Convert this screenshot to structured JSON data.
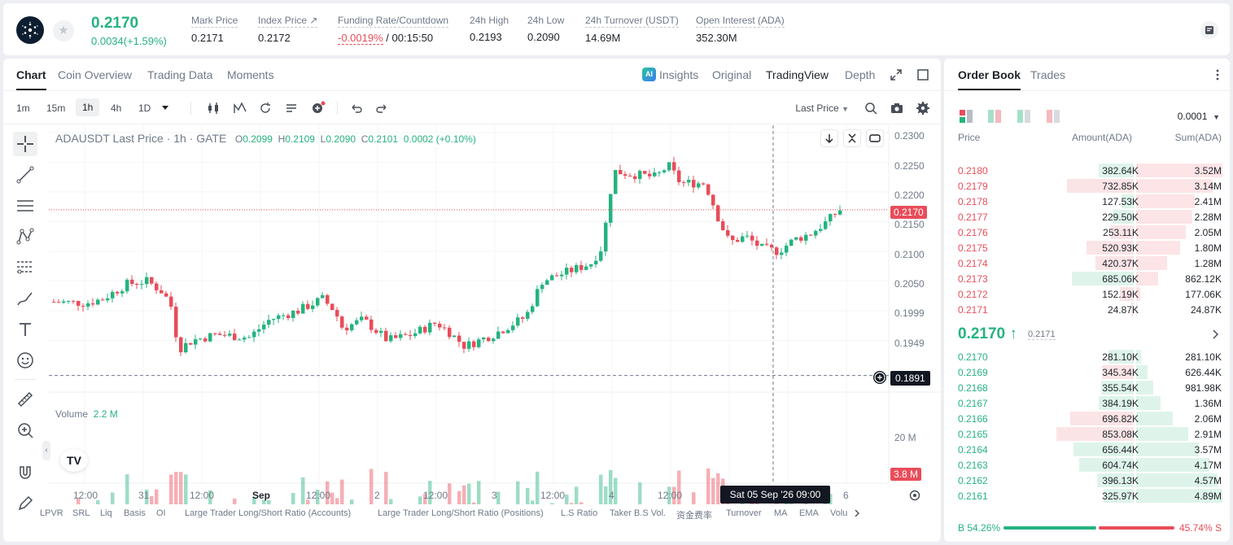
{
  "header": {
    "last_price": "0.2170",
    "change": "0.0034(+1.59%)",
    "stats": [
      {
        "label": "Mark Price",
        "value": "0.2171"
      },
      {
        "label": "Index Price ↗",
        "value": "0.2172"
      },
      {
        "label": "Funding Rate/Countdown",
        "value_rate": "-0.0019%",
        "value_cd": "/ 00:15:50"
      },
      {
        "label": "24h High",
        "value": "0.2193"
      },
      {
        "label": "24h Low",
        "value": "0.2090"
      },
      {
        "label": "24h Turnover (USDT)",
        "value": "14.69M"
      },
      {
        "label": "Open Interest (ADA)",
        "value": "352.30M"
      }
    ]
  },
  "tabs": [
    "Chart",
    "Coin Overview",
    "Trading Data",
    "Moments"
  ],
  "views": {
    "ai_badge": "AI",
    "insights": "Insights",
    "original": "Original",
    "tradingview": "TradingView",
    "depth": "Depth"
  },
  "timeframes": [
    "1m",
    "15m",
    "1h",
    "4h",
    "1D"
  ],
  "price_type": "Last Price",
  "legend": {
    "symbol": "ADAUSDT Last Price · 1h · GATE",
    "o": "0.2099",
    "h": "0.2109",
    "l": "0.2090",
    "c": "0.2101",
    "chg": "0.0002 (+0.10%)",
    "vol_label": "Volume",
    "vol_value": "2.2 M"
  },
  "tv_logo": "TV",
  "axis": {
    "price_ticks": [
      "0.2300",
      "0.2250",
      "0.2200",
      "0.2150",
      "0.2100",
      "0.2050",
      "0.1999",
      "0.1949"
    ],
    "last_tag": "0.2170",
    "cursor_tag": "0.1891",
    "vol_tick": "20 M",
    "vol_tag": "3.8 M"
  },
  "time_axis": [
    "12:00",
    "31",
    "12:00",
    "Sep",
    "12:00",
    "2",
    "12:00",
    "3",
    "12:00",
    "4",
    "12:00",
    "6"
  ],
  "crosshair_time": "Sat 05 Sep '26   09:00",
  "indicators": [
    "LPVR",
    "SRL",
    "Liq",
    "Basis",
    "OI",
    "Large Trader Long/Short Ratio (Accounts)",
    "Large Trader Long/Short Ratio (Positions)",
    "L.S Ratio",
    "Taker B.S Vol.",
    "资金费率",
    "Turnover",
    "MA",
    "EMA",
    "Volu"
  ],
  "chart_data": {
    "type": "candlestick",
    "y_range": [
      0.1891,
      0.23
    ],
    "last_price": 0.217,
    "cursor_price": 0.1891,
    "volume_unit": "M",
    "volume_tick": 20,
    "volume_last": 3.8
  },
  "orderbook": {
    "tabs": [
      "Order Book",
      "Trades"
    ],
    "precision": "0.0001",
    "cols": {
      "price": "Price",
      "amount": "Amount(ADA)",
      "sum": "Sum(ADA)"
    },
    "asks": [
      {
        "price": "0.2180",
        "amount": "382.64K",
        "sum": "3.52M",
        "a": 0.38,
        "s": 1.0
      },
      {
        "price": "0.2179",
        "amount": "732.85K",
        "sum": "3.14M",
        "a": 0.73,
        "s": 0.89
      },
      {
        "price": "0.2178",
        "amount": "127.53K",
        "sum": "2.41M",
        "a": 0.13,
        "s": 0.68
      },
      {
        "price": "0.2177",
        "amount": "229.50K",
        "sum": "2.28M",
        "a": 0.23,
        "s": 0.65
      },
      {
        "price": "0.2176",
        "amount": "253.11K",
        "sum": "2.05M",
        "a": 0.25,
        "s": 0.58
      },
      {
        "price": "0.2175",
        "amount": "520.93K",
        "sum": "1.80M",
        "a": 0.52,
        "s": 0.51
      },
      {
        "price": "0.2174",
        "amount": "420.37K",
        "sum": "1.28M",
        "a": 0.42,
        "s": 0.36
      },
      {
        "price": "0.2173",
        "amount": "685.06K",
        "sum": "862.12K",
        "a": 0.68,
        "s": 0.25
      },
      {
        "price": "0.2172",
        "amount": "152.19K",
        "sum": "177.06K",
        "a": 0.15,
        "s": 0.05
      },
      {
        "price": "0.2171",
        "amount": "24.87K",
        "sum": "24.87K",
        "a": 0.03,
        "s": 0.01
      }
    ],
    "mid_price": "0.2170 ↑",
    "mid_mark": "0.2171",
    "bids": [
      {
        "price": "0.2170",
        "amount": "281.10K",
        "sum": "281.10K",
        "a": 0.28,
        "s": 0.06
      },
      {
        "price": "0.2169",
        "amount": "345.34K",
        "sum": "626.44K",
        "a": 0.35,
        "s": 0.13
      },
      {
        "price": "0.2168",
        "amount": "355.54K",
        "sum": "981.98K",
        "a": 0.36,
        "s": 0.2
      },
      {
        "price": "0.2167",
        "amount": "384.19K",
        "sum": "1.36M",
        "a": 0.38,
        "s": 0.28
      },
      {
        "price": "0.2166",
        "amount": "696.82K",
        "sum": "2.06M",
        "a": 0.7,
        "s": 0.42
      },
      {
        "price": "0.2165",
        "amount": "853.08K",
        "sum": "2.91M",
        "a": 0.85,
        "s": 0.6
      },
      {
        "price": "0.2164",
        "amount": "656.44K",
        "sum": "3.57M",
        "a": 0.66,
        "s": 0.73
      },
      {
        "price": "0.2163",
        "amount": "604.74K",
        "sum": "4.17M",
        "a": 0.6,
        "s": 0.85
      },
      {
        "price": "0.2162",
        "amount": "396.13K",
        "sum": "4.57M",
        "a": 0.4,
        "s": 0.94
      },
      {
        "price": "0.2161",
        "amount": "325.97K",
        "sum": "4.89M",
        "a": 0.33,
        "s": 1.0
      }
    ],
    "buy_ratio": "B 54.26%",
    "sell_ratio": "45.74% S",
    "buy_fraction": 0.5426
  },
  "colors": {
    "up": "#25b37f",
    "down": "#e84d5a"
  }
}
